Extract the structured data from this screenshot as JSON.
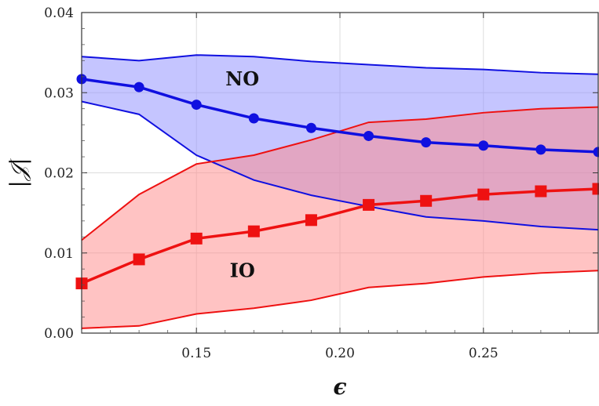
{
  "chart_data": {
    "type": "line",
    "xlabel": "ϵ",
    "ylabel": "|𝒥|",
    "xlim": [
      0.11,
      0.29
    ],
    "ylim": [
      0.0,
      0.04
    ],
    "xticks": [
      0.15,
      0.2,
      0.25
    ],
    "xtick_labels": [
      "0.15",
      "0.20",
      "0.25"
    ],
    "yticks": [
      0.0,
      0.01,
      0.02,
      0.03,
      0.04
    ],
    "ytick_labels": [
      "0.00",
      "0.01",
      "0.02",
      "0.03",
      "0.04"
    ],
    "grid": true,
    "x": [
      0.11,
      0.13,
      0.15,
      0.17,
      0.19,
      0.21,
      0.23,
      0.25,
      0.27,
      0.29
    ],
    "series": [
      {
        "key": "no",
        "color": "#1010e0",
        "fill_color": "#8c8cff",
        "marker": "circle",
        "values": [
          0.0317,
          0.0307,
          0.0285,
          0.0268,
          0.0256,
          0.0246,
          0.0238,
          0.0234,
          0.0229,
          0.0226
        ],
        "upper": [
          0.0345,
          0.034,
          0.0347,
          0.0345,
          0.0339,
          0.0335,
          0.0331,
          0.0329,
          0.0325,
          0.0323
        ],
        "lower": [
          0.0289,
          0.0273,
          0.0222,
          0.0191,
          0.0172,
          0.0158,
          0.0145,
          0.014,
          0.0133,
          0.0129
        ]
      },
      {
        "key": "io",
        "color": "#ee1111",
        "fill_color": "#ff8888",
        "marker": "square",
        "values": [
          0.0062,
          0.0092,
          0.0118,
          0.0127,
          0.0141,
          0.016,
          0.0165,
          0.0173,
          0.0177,
          0.018
        ],
        "upper": [
          0.0116,
          0.0173,
          0.0211,
          0.0222,
          0.0241,
          0.0263,
          0.0267,
          0.0275,
          0.028,
          0.0282
        ],
        "lower": [
          0.0006,
          0.0009,
          0.0024,
          0.0031,
          0.0041,
          0.0057,
          0.0062,
          0.007,
          0.0075,
          0.0078
        ]
      }
    ],
    "annotations": [
      {
        "text": "NO",
        "x": 0.166,
        "y": 0.0309
      },
      {
        "text": "IO",
        "x": 0.166,
        "y": 0.007
      }
    ]
  }
}
